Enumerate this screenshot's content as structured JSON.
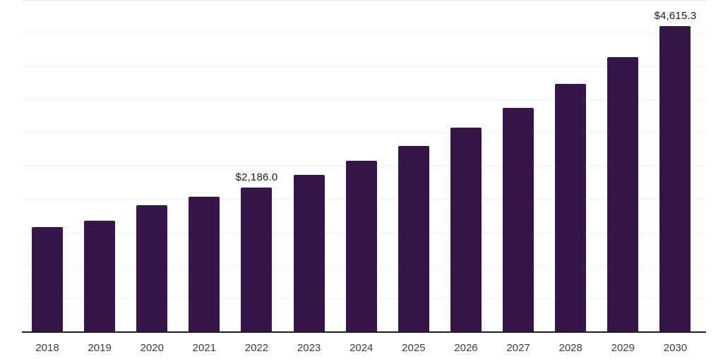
{
  "chart_data": {
    "type": "bar",
    "title": "",
    "xlabel": "",
    "ylabel": "",
    "categories": [
      "2018",
      "2019",
      "2020",
      "2021",
      "2022",
      "2023",
      "2024",
      "2025",
      "2026",
      "2027",
      "2028",
      "2029",
      "2030"
    ],
    "values": [
      1590,
      1683,
      1911,
      2043,
      2186.0,
      2372,
      2585,
      2813,
      3089,
      3386,
      3747,
      4151,
      4615.3
    ],
    "value_labels": {
      "2022": "$2,186.0",
      "2030": "$4,615.3"
    },
    "ylim": [
      0,
      5000
    ],
    "gridline_step": 500,
    "grid": "horizontal-only",
    "legend": "none",
    "bar_color": "#36154A",
    "axis_line_color": "#1f1f1f",
    "gridline_color": "#f1f1f1",
    "tick_label_color": "#3d3d3d",
    "value_label_color": "#1a1a1a"
  }
}
